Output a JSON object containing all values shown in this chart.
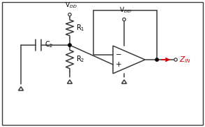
{
  "bg_color": "#ffffff",
  "border_color": "#3a3a3a",
  "line_color": "#3a3a3a",
  "dot_color": "#000000",
  "red_color": "#dd0000",
  "vdd_label": "V$_{DD}$",
  "r1_label": "R$_1$",
  "r2_label": "R$_2$",
  "c2_label": "C$_2$",
  "zin_label": "Z$_{IN}$",
  "fig_width": 2.94,
  "fig_height": 1.83,
  "dpi": 100
}
